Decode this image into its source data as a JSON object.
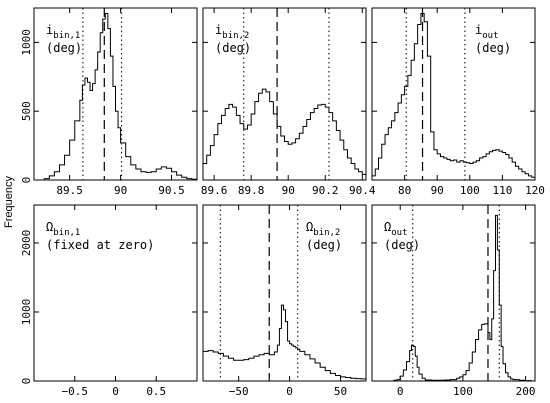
{
  "figure": {
    "ylabel": "Frequency"
  },
  "chart_data": [
    {
      "type": "histogram",
      "id": "i_bin1",
      "label_main": "i",
      "label_sub": "bin,1",
      "label_unit": "(deg)",
      "xlim": [
        89.15,
        90.75
      ],
      "ylim": [
        0,
        1250
      ],
      "xticks": [
        89.5,
        90,
        90.5
      ],
      "xtick_labels": [
        "89.5",
        "90",
        "90.5"
      ],
      "yticks": [
        0,
        500,
        1000
      ],
      "ytick_labels": [
        "0",
        "500",
        "1000"
      ],
      "median": 89.84,
      "bounds": [
        89.63,
        90.01
      ],
      "bins": [
        [
          89.2,
          0
        ],
        [
          89.25,
          10
        ],
        [
          89.3,
          30
        ],
        [
          89.35,
          60
        ],
        [
          89.4,
          110
        ],
        [
          89.45,
          180
        ],
        [
          89.5,
          290
        ],
        [
          89.55,
          430
        ],
        [
          89.6,
          580
        ],
        [
          89.625,
          690
        ],
        [
          89.65,
          740
        ],
        [
          89.675,
          710
        ],
        [
          89.7,
          650
        ],
        [
          89.725,
          700
        ],
        [
          89.75,
          800
        ],
        [
          89.775,
          930
        ],
        [
          89.8,
          1070
        ],
        [
          89.825,
          1170
        ],
        [
          89.85,
          1210
        ],
        [
          89.875,
          1100
        ],
        [
          89.9,
          900
        ],
        [
          89.925,
          680
        ],
        [
          89.95,
          500
        ],
        [
          89.975,
          380
        ],
        [
          90.0,
          270
        ],
        [
          90.05,
          170
        ],
        [
          90.1,
          110
        ],
        [
          90.15,
          80
        ],
        [
          90.2,
          60
        ],
        [
          90.25,
          55
        ],
        [
          90.3,
          60
        ],
        [
          90.35,
          80
        ],
        [
          90.4,
          95
        ],
        [
          90.45,
          85
        ],
        [
          90.5,
          60
        ],
        [
          90.55,
          35
        ],
        [
          90.6,
          20
        ],
        [
          90.65,
          10
        ],
        [
          90.7,
          5
        ]
      ]
    },
    {
      "type": "histogram",
      "id": "i_bin2",
      "label_main": "i",
      "label_sub": "bin,2",
      "label_unit": "(deg)",
      "xlim": [
        89.54,
        90.42
      ],
      "ylim": [
        0,
        1250
      ],
      "xticks": [
        89.6,
        89.8,
        90,
        90.2,
        90.4
      ],
      "xtick_labels": [
        "89.6",
        "89.8",
        "90",
        "90.2",
        "90.4"
      ],
      "yticks": [
        0,
        500,
        1000
      ],
      "ytick_labels": [
        "",
        "",
        ""
      ],
      "median": 89.94,
      "bounds": [
        89.76,
        90.22
      ],
      "bins": [
        [
          89.54,
          120
        ],
        [
          89.56,
          180
        ],
        [
          89.58,
          250
        ],
        [
          89.6,
          330
        ],
        [
          89.62,
          410
        ],
        [
          89.64,
          470
        ],
        [
          89.66,
          520
        ],
        [
          89.68,
          550
        ],
        [
          89.7,
          530
        ],
        [
          89.72,
          470
        ],
        [
          89.74,
          410
        ],
        [
          89.76,
          370
        ],
        [
          89.78,
          400
        ],
        [
          89.8,
          480
        ],
        [
          89.82,
          570
        ],
        [
          89.84,
          630
        ],
        [
          89.86,
          660
        ],
        [
          89.88,
          640
        ],
        [
          89.9,
          570
        ],
        [
          89.92,
          480
        ],
        [
          89.94,
          390
        ],
        [
          89.96,
          320
        ],
        [
          89.98,
          280
        ],
        [
          90.0,
          260
        ],
        [
          90.02,
          270
        ],
        [
          90.04,
          300
        ],
        [
          90.06,
          340
        ],
        [
          90.08,
          390
        ],
        [
          90.1,
          440
        ],
        [
          90.12,
          490
        ],
        [
          90.14,
          520
        ],
        [
          90.16,
          545
        ],
        [
          90.18,
          550
        ],
        [
          90.2,
          530
        ],
        [
          90.22,
          490
        ],
        [
          90.24,
          430
        ],
        [
          90.26,
          360
        ],
        [
          90.28,
          290
        ],
        [
          90.3,
          220
        ],
        [
          90.32,
          160
        ],
        [
          90.34,
          120
        ],
        [
          90.36,
          80
        ],
        [
          90.38,
          60
        ],
        [
          90.4,
          40
        ]
      ]
    },
    {
      "type": "histogram",
      "id": "i_out",
      "label_main": "i",
      "label_sub": "out",
      "label_unit": "(deg)",
      "xlim": [
        70,
        120
      ],
      "ylim": [
        0,
        1250
      ],
      "xticks": [
        80,
        90,
        100,
        110,
        120
      ],
      "xtick_labels": [
        "80",
        "90",
        "100",
        "110",
        "120"
      ],
      "yticks": [
        0,
        500,
        1000
      ],
      "ytick_labels": [
        "",
        "",
        ""
      ],
      "median": 85.5,
      "bounds": [
        80.5,
        98.5
      ],
      "bins": [
        [
          70,
          30
        ],
        [
          71,
          80
        ],
        [
          72,
          160
        ],
        [
          73,
          260
        ],
        [
          74,
          330
        ],
        [
          75,
          380
        ],
        [
          76,
          430
        ],
        [
          77,
          490
        ],
        [
          78,
          560
        ],
        [
          79,
          620
        ],
        [
          80,
          680
        ],
        [
          81,
          760
        ],
        [
          82,
          870
        ],
        [
          83,
          990
        ],
        [
          84,
          1130
        ],
        [
          85,
          1210
        ],
        [
          86,
          1150
        ],
        [
          87,
          900
        ],
        [
          88,
          350
        ],
        [
          89,
          220
        ],
        [
          90,
          190
        ],
        [
          91,
          170
        ],
        [
          92,
          160
        ],
        [
          93,
          150
        ],
        [
          94,
          140
        ],
        [
          95,
          145
        ],
        [
          96,
          130
        ],
        [
          97,
          140
        ],
        [
          98,
          130
        ],
        [
          99,
          125
        ],
        [
          100,
          120
        ],
        [
          101,
          130
        ],
        [
          102,
          140
        ],
        [
          103,
          160
        ],
        [
          104,
          170
        ],
        [
          105,
          190
        ],
        [
          106,
          205
        ],
        [
          107,
          215
        ],
        [
          108,
          220
        ],
        [
          109,
          210
        ],
        [
          110,
          200
        ],
        [
          111,
          185
        ],
        [
          112,
          160
        ],
        [
          113,
          130
        ],
        [
          114,
          100
        ],
        [
          115,
          80
        ],
        [
          116,
          60
        ],
        [
          117,
          45
        ],
        [
          118,
          30
        ],
        [
          119,
          20
        ]
      ]
    },
    {
      "type": "histogram",
      "id": "omega_bin1",
      "label_main": "Ω",
      "label_sub": "bin,1",
      "label_unit": "(fixed at zero)",
      "xlim": [
        -1,
        1
      ],
      "ylim": [
        0,
        2550
      ],
      "xticks": [
        -0.5,
        0,
        0.5
      ],
      "xtick_labels": [
        "−0.5",
        "0",
        "0.5"
      ],
      "yticks": [
        0,
        1000,
        2000
      ],
      "ytick_labels": [
        "0",
        "1000",
        "2000"
      ],
      "bins": []
    },
    {
      "type": "histogram",
      "id": "omega_bin2",
      "label_main": "Ω",
      "label_sub": "bin,2",
      "label_unit": "(deg)",
      "xlim": [
        -85,
        75
      ],
      "ylim": [
        0,
        2550
      ],
      "xticks": [
        -50,
        0,
        50
      ],
      "xtick_labels": [
        "−50",
        "0",
        "50"
      ],
      "yticks": [
        0,
        1000,
        2000
      ],
      "ytick_labels": [
        "",
        "",
        ""
      ],
      "median": -20,
      "bounds": [
        -68,
        8
      ],
      "bins": [
        [
          -85,
          430
        ],
        [
          -80,
          440
        ],
        [
          -75,
          420
        ],
        [
          -70,
          400
        ],
        [
          -65,
          360
        ],
        [
          -60,
          330
        ],
        [
          -55,
          300
        ],
        [
          -50,
          300
        ],
        [
          -45,
          310
        ],
        [
          -40,
          330
        ],
        [
          -35,
          360
        ],
        [
          -30,
          380
        ],
        [
          -25,
          400
        ],
        [
          -20,
          380
        ],
        [
          -15,
          420
        ],
        [
          -12,
          520
        ],
        [
          -10,
          760
        ],
        [
          -8,
          1100
        ],
        [
          -6,
          1030
        ],
        [
          -4,
          860
        ],
        [
          -2,
          580
        ],
        [
          0,
          540
        ],
        [
          2,
          520
        ],
        [
          4,
          500
        ],
        [
          6,
          480
        ],
        [
          8,
          460
        ],
        [
          10,
          430
        ],
        [
          15,
          380
        ],
        [
          20,
          320
        ],
        [
          25,
          260
        ],
        [
          30,
          200
        ],
        [
          35,
          150
        ],
        [
          40,
          110
        ],
        [
          45,
          80
        ],
        [
          50,
          60
        ],
        [
          55,
          50
        ],
        [
          60,
          40
        ],
        [
          65,
          35
        ],
        [
          70,
          30
        ]
      ]
    },
    {
      "type": "histogram",
      "id": "omega_out",
      "label_main": "Ω",
      "label_sub": "out",
      "label_unit": "(deg)",
      "xlim": [
        -45,
        215
      ],
      "ylim": [
        0,
        2550
      ],
      "xticks": [
        0,
        100,
        200
      ],
      "xtick_labels": [
        "0",
        "100",
        "200"
      ],
      "yticks": [
        0,
        1000,
        2000
      ],
      "ytick_labels": [
        "",
        "",
        ""
      ],
      "median": 140,
      "bounds": [
        20,
        158
      ],
      "bins": [
        [
          -10,
          10
        ],
        [
          -5,
          20
        ],
        [
          0,
          70
        ],
        [
          5,
          160
        ],
        [
          10,
          280
        ],
        [
          15,
          440
        ],
        [
          18,
          520
        ],
        [
          21,
          500
        ],
        [
          24,
          360
        ],
        [
          27,
          200
        ],
        [
          30,
          100
        ],
        [
          35,
          40
        ],
        [
          40,
          15
        ],
        [
          50,
          10
        ],
        [
          60,
          10
        ],
        [
          70,
          15
        ],
        [
          80,
          20
        ],
        [
          90,
          40
        ],
        [
          95,
          60
        ],
        [
          100,
          90
        ],
        [
          105,
          150
        ],
        [
          110,
          260
        ],
        [
          115,
          420
        ],
        [
          120,
          600
        ],
        [
          125,
          740
        ],
        [
          130,
          820
        ],
        [
          135,
          830
        ],
        [
          140,
          700
        ],
        [
          143,
          600
        ],
        [
          146,
          900
        ],
        [
          149,
          1600
        ],
        [
          152,
          2400
        ],
        [
          155,
          1900
        ],
        [
          158,
          1100
        ],
        [
          161,
          500
        ],
        [
          164,
          250
        ],
        [
          168,
          120
        ],
        [
          172,
          60
        ],
        [
          176,
          30
        ],
        [
          180,
          20
        ],
        [
          190,
          10
        ],
        [
          200,
          5
        ]
      ]
    }
  ]
}
